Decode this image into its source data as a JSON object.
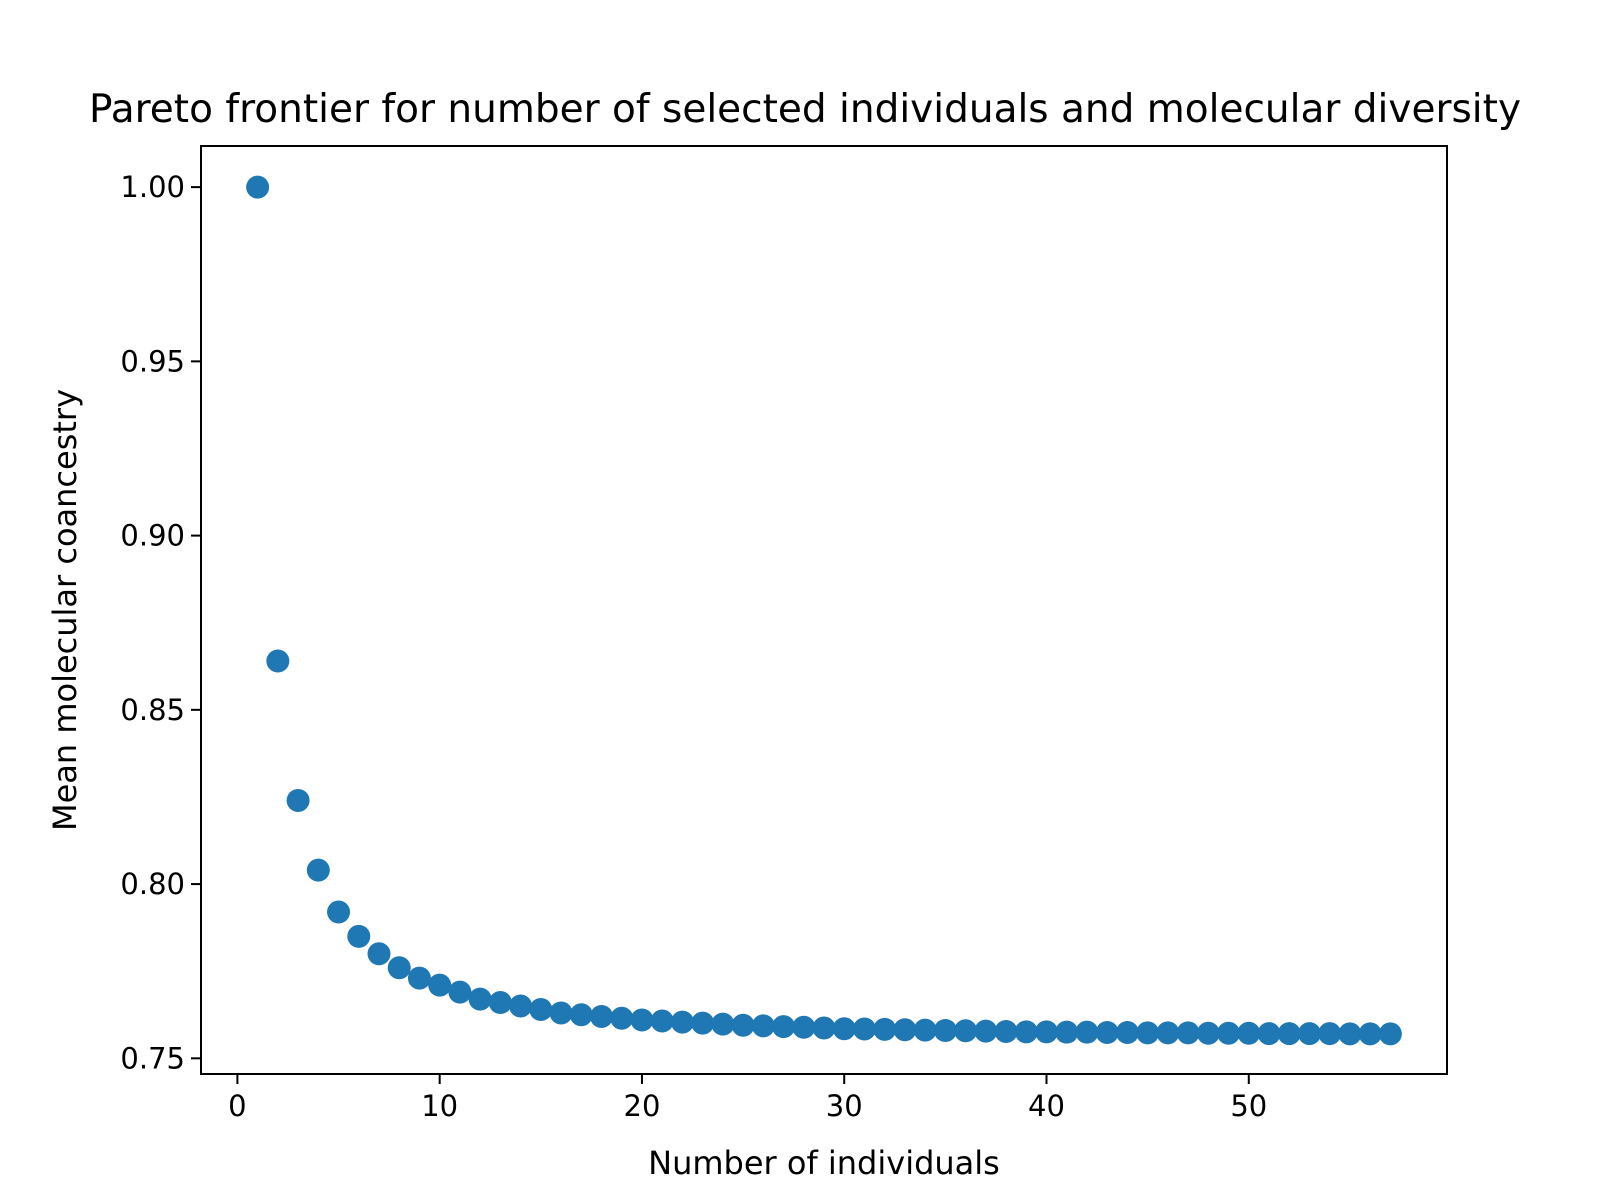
{
  "chart_data": {
    "type": "scatter",
    "title": "Pareto frontier for number of selected individuals and molecular diversity",
    "xlabel": "Number of individuals",
    "ylabel": "Mean molecular coancestry",
    "xlim": [
      -1.8,
      59.8
    ],
    "ylim": [
      0.7455,
      1.0118
    ],
    "xticks": [
      0,
      10,
      20,
      30,
      40,
      50
    ],
    "xtick_labels": [
      "0",
      "10",
      "20",
      "30",
      "40",
      "50"
    ],
    "yticks": [
      0.75,
      0.8,
      0.85,
      0.9,
      0.95,
      1.0
    ],
    "ytick_labels": [
      "0.75",
      "0.80",
      "0.85",
      "0.90",
      "0.95",
      "1.00"
    ],
    "grid": false,
    "marker_color": "#1f77b4",
    "series": [
      {
        "x": [
          1,
          2,
          3,
          4,
          5,
          6,
          7,
          8,
          9,
          10,
          11,
          12,
          13,
          14,
          15,
          16,
          17,
          18,
          19,
          20,
          21,
          22,
          23,
          24,
          25,
          26,
          27,
          28,
          29,
          30,
          31,
          32,
          33,
          34,
          35,
          36,
          37,
          38,
          39,
          40,
          41,
          42,
          43,
          44,
          45,
          46,
          47,
          48,
          49,
          50,
          51,
          52,
          53,
          54,
          55,
          56,
          57
        ],
        "y": [
          1.0,
          0.864,
          0.824,
          0.804,
          0.792,
          0.785,
          0.78,
          0.776,
          0.773,
          0.771,
          0.769,
          0.767,
          0.766,
          0.765,
          0.764,
          0.763,
          0.7625,
          0.762,
          0.7615,
          0.761,
          0.7607,
          0.7604,
          0.7601,
          0.7598,
          0.7595,
          0.7593,
          0.7591,
          0.7589,
          0.7587,
          0.7585,
          0.7584,
          0.7583,
          0.7582,
          0.7581,
          0.758,
          0.7579,
          0.7578,
          0.7577,
          0.7576,
          0.7576,
          0.7575,
          0.7575,
          0.7574,
          0.7574,
          0.7573,
          0.7573,
          0.7573,
          0.7572,
          0.7572,
          0.7572,
          0.7571,
          0.7571,
          0.7571,
          0.7571,
          0.757,
          0.757,
          0.757
        ]
      }
    ]
  }
}
